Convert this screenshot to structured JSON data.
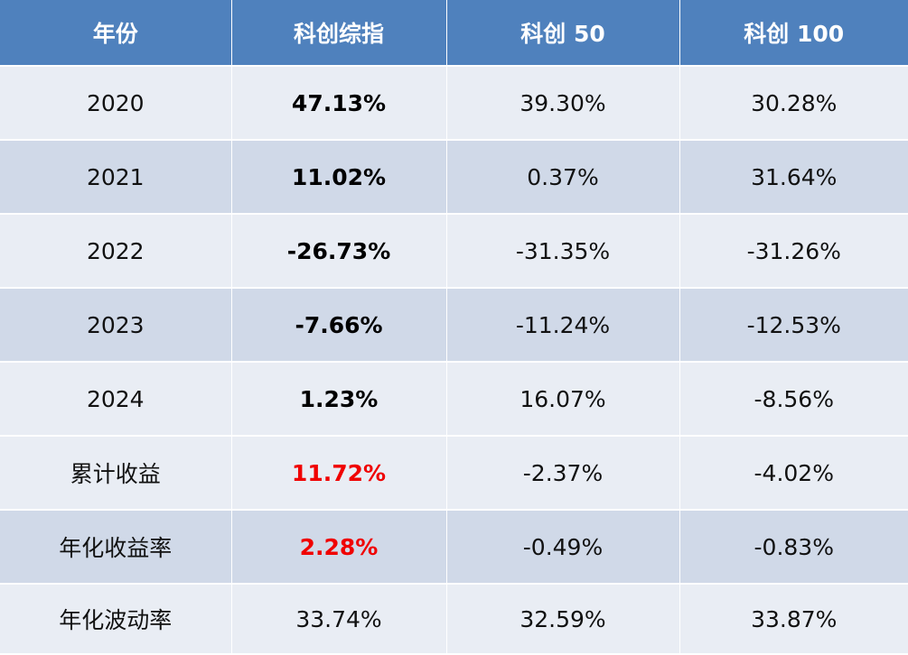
{
  "headers": [
    "年份",
    "科创综指",
    "科创 50",
    "科创 100"
  ],
  "rows": [
    {
      "label": "2020",
      "values": [
        "47.13%",
        "39.30%",
        "30.28%"
      ]
    },
    {
      "label": "2021",
      "values": [
        "11.02%",
        "0.37%",
        "31.64%"
      ]
    },
    {
      "label": "2022",
      "values": [
        "-26.73%",
        "-31.35%",
        "-31.26%"
      ]
    },
    {
      "label": "2023",
      "values": [
        "-7.66%",
        "-11.24%",
        "-12.53%"
      ]
    },
    {
      "label": "2024",
      "values": [
        "1.23%",
        "16.07%",
        "-8.56%"
      ]
    },
    {
      "label": "累计收益",
      "values": [
        "11.72%",
        "-2.37%",
        "-4.02%"
      ]
    },
    {
      "label": "年化收益率",
      "values": [
        "2.28%",
        "-0.49%",
        "-0.83%"
      ]
    },
    {
      "label": "年化波动率",
      "values": [
        "33.74%",
        "32.59%",
        "33.87%"
      ]
    }
  ],
  "colors": {
    "header_bg": "#4f81bd",
    "row_light": "#e9edf4",
    "row_dark": "#d0d9e8",
    "highlight_red": "#f00000"
  }
}
